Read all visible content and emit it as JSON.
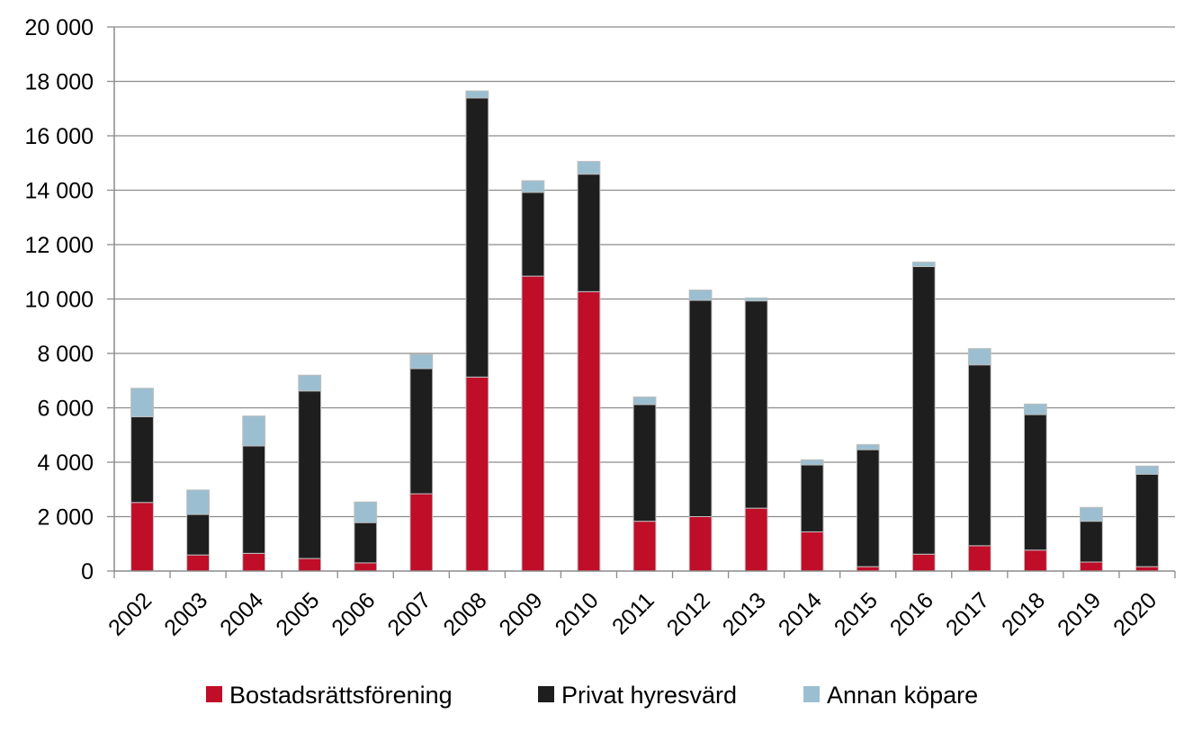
{
  "chart_data": {
    "type": "bar",
    "stacked": true,
    "categories": [
      "2002",
      "2003",
      "2004",
      "2005",
      "2006",
      "2007",
      "2008",
      "2009",
      "2010",
      "2011",
      "2012",
      "2013",
      "2014",
      "2015",
      "2016",
      "2017",
      "2018",
      "2019",
      "2020"
    ],
    "series": [
      {
        "name": "Bostadsrättsförening",
        "color": "#c00d28",
        "values": [
          2520,
          590,
          650,
          460,
          300,
          2840,
          7130,
          10840,
          10270,
          1830,
          2000,
          2310,
          1440,
          160,
          620,
          930,
          770,
          330,
          160
        ]
      },
      {
        "name": "Privat hyresvärd",
        "color": "#1e1e1e",
        "values": [
          3150,
          1490,
          3950,
          6160,
          1480,
          4600,
          10260,
          3080,
          4320,
          4290,
          7950,
          7620,
          2460,
          4300,
          10570,
          6650,
          4980,
          1500,
          3400
        ]
      },
      {
        "name": "Annan köpare",
        "color": "#9bbfd0",
        "values": [
          1050,
          900,
          1100,
          580,
          760,
          520,
          260,
          430,
          470,
          280,
          380,
          110,
          190,
          190,
          170,
          600,
          390,
          510,
          300
        ]
      }
    ],
    "y_ticks": [
      "0",
      "2 000",
      "4 000",
      "6 000",
      "8 000",
      "10 000",
      "12 000",
      "14 000",
      "16 000",
      "18 000",
      "20 000"
    ],
    "ylim": [
      0,
      20000
    ],
    "grid": true,
    "legend_position": "bottom"
  }
}
